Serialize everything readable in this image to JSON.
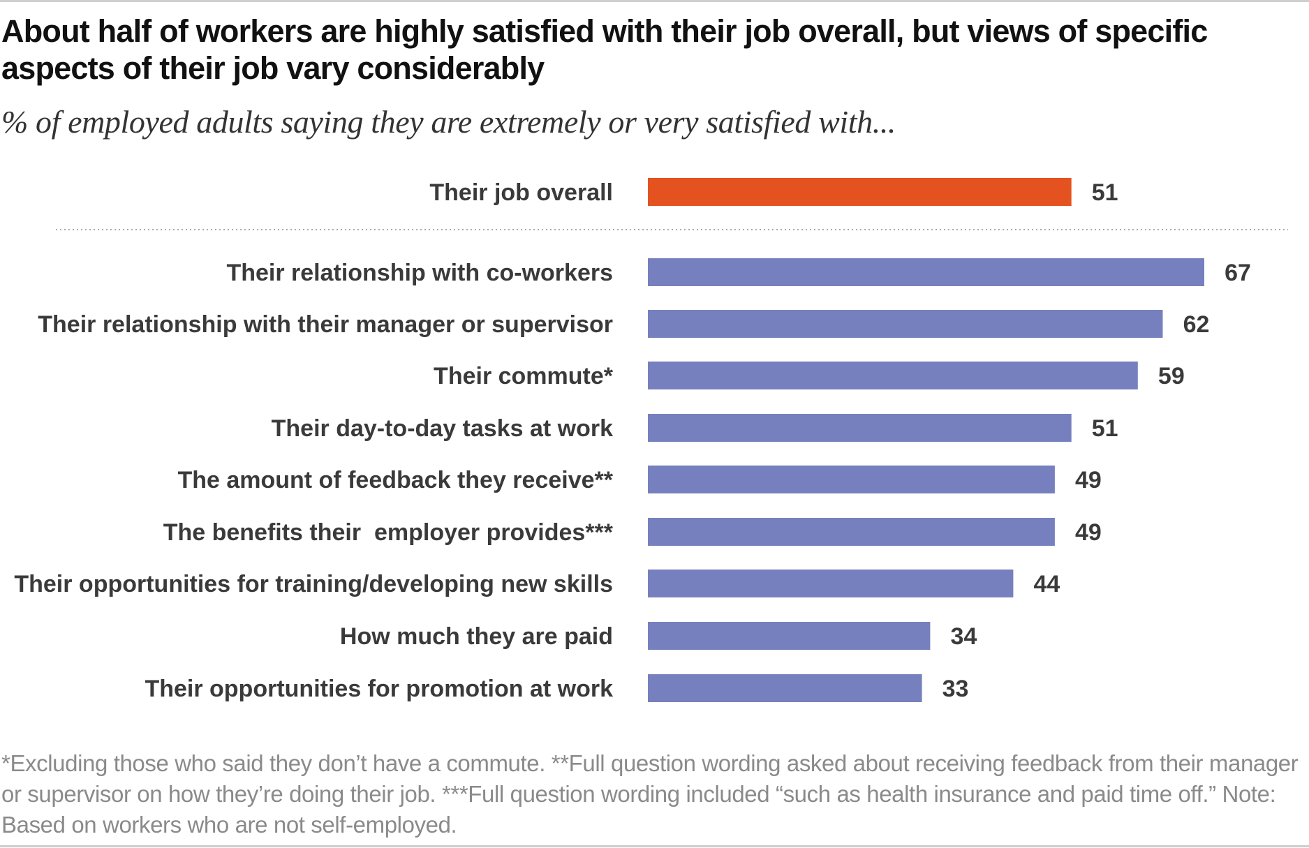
{
  "title": "About half of workers are highly satisfied with their job overall, but views of specific aspects of their job vary considerably",
  "subtitle": "% of employed adults saying they are extremely or very satisfied with...",
  "note": "*Excluding those who said they don’t have a commute. **Full question wording asked about receiving feedback from their manager or supervisor on how they’re doing their job. ***Full question wording included “such as health insurance and paid time off.” Note: Based on workers who are not self-employed.",
  "colors": {
    "highlight": "#e4531f",
    "bar": "#7680be",
    "separator": "#aaaaaa"
  },
  "chart_data": {
    "type": "bar",
    "orientation": "horizontal",
    "categories": [
      "Their job overall",
      "Their relationship with co-workers",
      "Their relationship with their manager or supervisor",
      "Their commute*",
      "Their day-to-day tasks at work",
      "The amount of feedback they receive**",
      "The benefits their  employer provides***",
      "Their opportunities for training/developing new skills",
      "How much they are paid",
      "Their opportunities for promotion at work"
    ],
    "values": [
      51,
      67,
      62,
      59,
      51,
      49,
      49,
      44,
      34,
      33
    ],
    "highlight_index": 0,
    "separator_after_index": 0,
    "xlim": [
      0,
      67
    ],
    "grid": false,
    "legend": "none"
  }
}
